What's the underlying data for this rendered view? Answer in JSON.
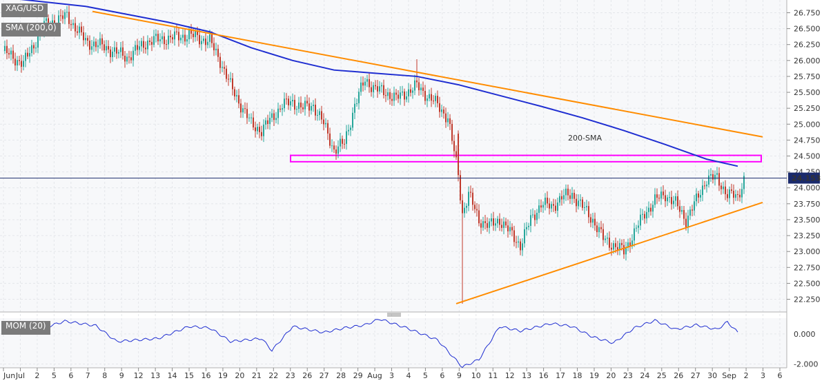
{
  "symbol_label": "XAG/USD",
  "indicator_label": "SMA (200,0)",
  "momentum_label": "MOM (20)",
  "annotation_sma": "200-SMA",
  "price_tag": "24.153",
  "colors": {
    "bull": "#26a69a",
    "bear": "#c0392b",
    "sma": "#1f2ed1",
    "trendline": "#ff8c00",
    "zone": "#ff00ff",
    "momentum": "#1f2ed1",
    "price_line": "#1a2a6c",
    "price_tag_bg": "#1a2a6c"
  },
  "chart_data": {
    "type": "candlestick",
    "title": "",
    "price_axis": {
      "ticks": [
        "26.750",
        "26.500",
        "26.250",
        "26.000",
        "25.750",
        "25.500",
        "25.250",
        "25.000",
        "24.750",
        "24.500",
        "24.250",
        "24.000",
        "23.750",
        "23.500",
        "23.250",
        "23.000",
        "22.750",
        "22.500",
        "22.250"
      ],
      "range": [
        22.05,
        26.95
      ]
    },
    "momentum_axis": {
      "ticks": [
        "0.000",
        "-2.000"
      ],
      "range": [
        -2.25,
        1.05
      ]
    },
    "x_axis_labels": [
      "Jun",
      "Jul",
      "2",
      "5",
      "6",
      "7",
      "8",
      "9",
      "12",
      "13",
      "14",
      "15",
      "16",
      "19",
      "20",
      "21",
      "22",
      "23",
      "26",
      "27",
      "28",
      "29",
      "Aug",
      "3",
      "4",
      "5",
      "6",
      "9",
      "10",
      "11",
      "12",
      "13",
      "16",
      "17",
      "18",
      "19",
      "20",
      "23",
      "24",
      "25",
      "26",
      "27",
      "30",
      "Sep",
      "2",
      "3",
      "6"
    ],
    "annotations": [
      {
        "text": "200-SMA"
      },
      {
        "type": "hline",
        "label": "24.153",
        "value": 24.153
      },
      {
        "type": "zone",
        "from": 24.41,
        "to": 24.51
      },
      {
        "type": "resistance_line",
        "from": 26.77,
        "to": 24.8
      },
      {
        "type": "support_line",
        "from": 22.18,
        "to": 23.77
      }
    ],
    "series": [
      {
        "name": "XAG/USD",
        "type": "candlestick",
        "anchors": [
          [
            0,
            26.15
          ],
          [
            10,
            25.95
          ],
          [
            20,
            26.55
          ],
          [
            31,
            26.7
          ],
          [
            40,
            26.3
          ],
          [
            50,
            26.2
          ],
          [
            60,
            26.05
          ],
          [
            70,
            26.3
          ],
          [
            80,
            26.35
          ],
          [
            90,
            26.4
          ],
          [
            100,
            26.3
          ],
          [
            105,
            26.0
          ],
          [
            110,
            25.6
          ],
          [
            115,
            25.3
          ],
          [
            120,
            25.0
          ],
          [
            125,
            24.9
          ],
          [
            130,
            25.1
          ],
          [
            135,
            25.3
          ],
          [
            140,
            25.35
          ],
          [
            145,
            25.25
          ],
          [
            150,
            25.3
          ],
          [
            155,
            25.0
          ],
          [
            160,
            24.6
          ],
          [
            165,
            24.7
          ],
          [
            170,
            25.3
          ],
          [
            175,
            25.7
          ],
          [
            180,
            25.55
          ],
          [
            185,
            25.5
          ],
          [
            190,
            25.4
          ],
          [
            195,
            25.5
          ],
          [
            200,
            25.6
          ],
          [
            205,
            25.45
          ],
          [
            210,
            25.3
          ],
          [
            215,
            25.1
          ],
          [
            220,
            24.2
          ],
          [
            222,
            23.6
          ],
          [
            225,
            23.9
          ],
          [
            230,
            23.5
          ],
          [
            235,
            23.4
          ],
          [
            240,
            23.5
          ],
          [
            245,
            23.3
          ],
          [
            250,
            23.1
          ],
          [
            255,
            23.5
          ],
          [
            260,
            23.75
          ],
          [
            265,
            23.7
          ],
          [
            270,
            23.85
          ],
          [
            275,
            23.9
          ],
          [
            280,
            23.7
          ],
          [
            285,
            23.5
          ],
          [
            290,
            23.2
          ],
          [
            295,
            23.1
          ],
          [
            300,
            23.0
          ],
          [
            305,
            23.3
          ],
          [
            310,
            23.6
          ],
          [
            315,
            23.8
          ],
          [
            320,
            23.9
          ],
          [
            325,
            23.75
          ],
          [
            330,
            23.5
          ],
          [
            335,
            23.8
          ],
          [
            340,
            24.15
          ],
          [
            345,
            24.15
          ],
          [
            350,
            23.9
          ],
          [
            355,
            23.85
          ],
          [
            358,
            24.15
          ]
        ]
      },
      {
        "name": "SMA (200,0)",
        "type": "line",
        "points": [
          [
            0,
            26.99
          ],
          [
            40,
            26.85
          ],
          [
            80,
            26.6
          ],
          [
            100,
            26.45
          ],
          [
            120,
            26.2
          ],
          [
            140,
            26.0
          ],
          [
            160,
            25.85
          ],
          [
            180,
            25.8
          ],
          [
            200,
            25.75
          ],
          [
            220,
            25.62
          ],
          [
            240,
            25.45
          ],
          [
            260,
            25.28
          ],
          [
            280,
            25.1
          ],
          [
            300,
            24.9
          ],
          [
            320,
            24.68
          ],
          [
            340,
            24.45
          ],
          [
            355,
            24.34
          ]
        ]
      },
      {
        "name": "MOM (20)",
        "type": "line",
        "points": [
          [
            0,
            0.5
          ],
          [
            15,
            0.2
          ],
          [
            30,
            0.85
          ],
          [
            45,
            0.55
          ],
          [
            55,
            -0.5
          ],
          [
            75,
            -0.3
          ],
          [
            90,
            0.5
          ],
          [
            100,
            0.4
          ],
          [
            110,
            -0.5
          ],
          [
            125,
            -0.3
          ],
          [
            130,
            -1.1
          ],
          [
            140,
            0.5
          ],
          [
            155,
            0.1
          ],
          [
            165,
            0.4
          ],
          [
            175,
            0.6
          ],
          [
            182,
            1.0
          ],
          [
            195,
            0.4
          ],
          [
            210,
            -0.4
          ],
          [
            222,
            -2.2
          ],
          [
            230,
            -1.7
          ],
          [
            240,
            0.5
          ],
          [
            250,
            0.2
          ],
          [
            265,
            0.7
          ],
          [
            275,
            0.5
          ],
          [
            285,
            -0.2
          ],
          [
            295,
            -0.6
          ],
          [
            305,
            0.4
          ],
          [
            315,
            0.9
          ],
          [
            325,
            0.3
          ],
          [
            335,
            0.6
          ],
          [
            345,
            0.3
          ],
          [
            350,
            0.8
          ],
          [
            355,
            0.1
          ]
        ]
      }
    ]
  }
}
